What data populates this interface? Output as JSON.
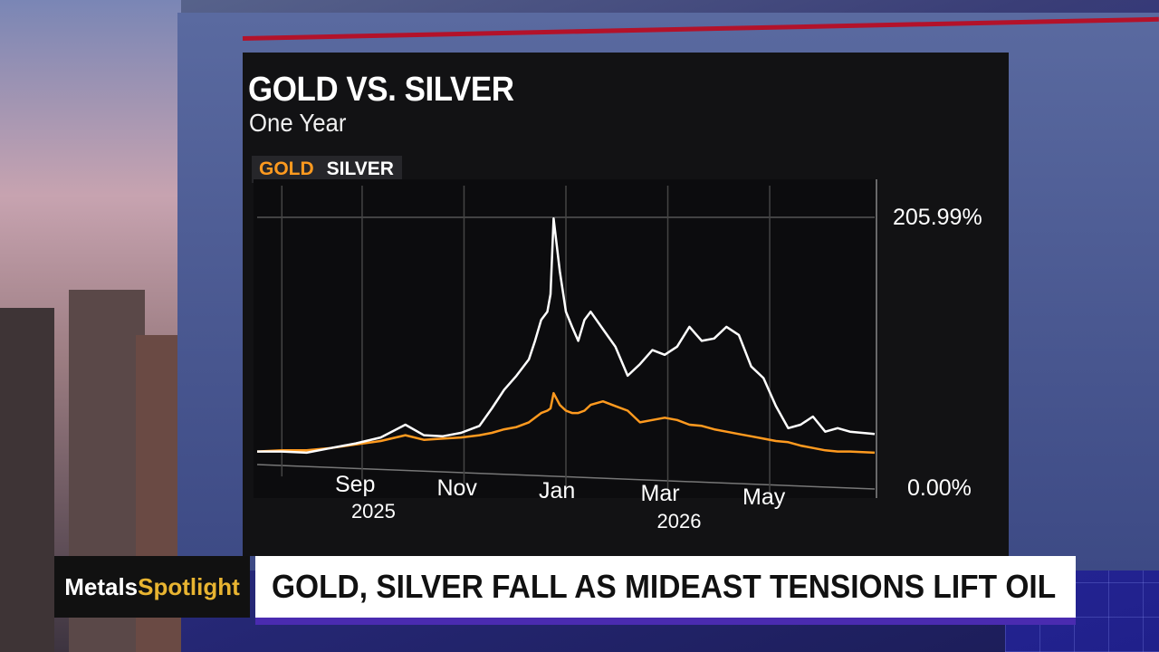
{
  "headline_bar": {
    "brand_word1": "Metals",
    "brand_word2": "Spotlight",
    "headline": "GOLD, SILVER FALL AS MIDEAST TENSIONS LIFT OIL"
  },
  "colors": {
    "gold": "#ff9a1f",
    "silver": "#ffffff",
    "accent_red": "#b3122a",
    "brand_gold": "#e8b431"
  },
  "chart_data": {
    "type": "line",
    "title": "GOLD VS. SILVER",
    "subtitle": "One Year",
    "legend": [
      "GOLD",
      "SILVER"
    ],
    "y_axis_labels": [
      "205.99%",
      "0.00%"
    ],
    "ylim": [
      0,
      205.99
    ],
    "x_tick_labels": [
      {
        "month": "Sep",
        "year": "2025"
      },
      {
        "month": "Nov",
        "year": ""
      },
      {
        "month": "Jan",
        "year": ""
      },
      {
        "month": "Mar",
        "year": "2026"
      },
      {
        "month": "May",
        "year": ""
      }
    ],
    "x_tick_positions": [
      0.17,
      0.335,
      0.5,
      0.665,
      0.83
    ],
    "x": [
      0,
      0.04,
      0.08,
      0.12,
      0.16,
      0.2,
      0.24,
      0.27,
      0.3,
      0.33,
      0.36,
      0.38,
      0.4,
      0.42,
      0.44,
      0.45,
      0.46,
      0.47,
      0.475,
      0.48,
      0.49,
      0.5,
      0.51,
      0.52,
      0.53,
      0.54,
      0.56,
      0.58,
      0.6,
      0.62,
      0.64,
      0.66,
      0.68,
      0.7,
      0.72,
      0.74,
      0.76,
      0.78,
      0.8,
      0.82,
      0.84,
      0.86,
      0.88,
      0.9,
      0.92,
      0.94,
      0.96,
      1.0
    ],
    "series": [
      {
        "name": "SILVER",
        "values": [
          5,
          5,
          4,
          8,
          12,
          17,
          28,
          19,
          18,
          21,
          27,
          42,
          58,
          70,
          84,
          100,
          118,
          125,
          140,
          205,
          160,
          125,
          112,
          100,
          118,
          125,
          110,
          95,
          70,
          80,
          92,
          88,
          95,
          112,
          100,
          102,
          112,
          105,
          78,
          68,
          44,
          25,
          28,
          35,
          22,
          25,
          22,
          20
        ]
      },
      {
        "name": "GOLD",
        "values": [
          5,
          6,
          6,
          8,
          11,
          14,
          19,
          15,
          16,
          17,
          19,
          21,
          24,
          26,
          30,
          34,
          38,
          40,
          42,
          55,
          45,
          40,
          38,
          38,
          40,
          45,
          48,
          44,
          40,
          30,
          32,
          34,
          32,
          28,
          27,
          24,
          22,
          20,
          18,
          16,
          14,
          13,
          10,
          8,
          6,
          5,
          5,
          4
        ]
      }
    ],
    "grid": true
  }
}
